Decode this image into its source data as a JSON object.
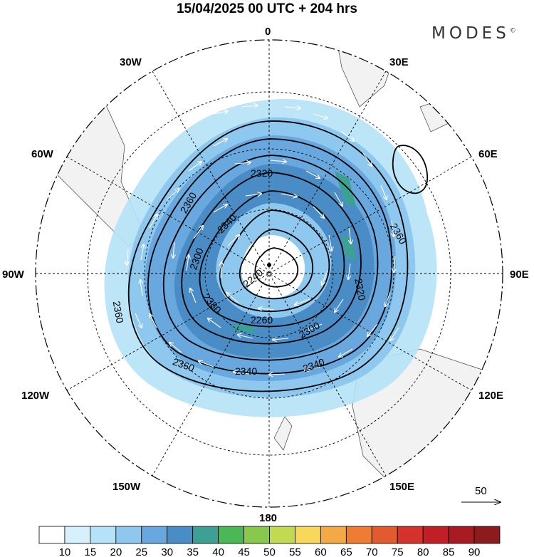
{
  "title": "15/04/2025  00 UTC  + 204 hrs",
  "brand": "MODES",
  "brand_mark": "©",
  "map": {
    "projection": "south-polar-stereographic",
    "longitude_labels": [
      {
        "text": "0",
        "lon": 0
      },
      {
        "text": "30E",
        "lon": 30
      },
      {
        "text": "60E",
        "lon": 60
      },
      {
        "text": "90E",
        "lon": 90
      },
      {
        "text": "120E",
        "lon": 120
      },
      {
        "text": "150E",
        "lon": 150
      },
      {
        "text": "180",
        "lon": 180
      },
      {
        "text": "150W",
        "lon": -150
      },
      {
        "text": "120W",
        "lon": -120
      },
      {
        "text": "90W",
        "lon": -90
      },
      {
        "text": "60W",
        "lon": -60
      },
      {
        "text": "30W",
        "lon": -30
      }
    ],
    "contour_labels": [
      "2360",
      "2320",
      "2340",
      "2300",
      "2360",
      "2360",
      "2360",
      "2320",
      "2380",
      "2260",
      "2300",
      "2340",
      "2340",
      "2360",
      "2240",
      "2280"
    ],
    "vector_reference": {
      "value": "50"
    }
  },
  "colorbar": {
    "ticks": [
      "10",
      "15",
      "20",
      "25",
      "30",
      "35",
      "40",
      "45",
      "50",
      "55",
      "60",
      "65",
      "70",
      "75",
      "80",
      "85",
      "90"
    ],
    "colors": [
      "#ffffff",
      "#d6f1fc",
      "#b6e2f7",
      "#8ec8ee",
      "#68a8de",
      "#4a8cc6",
      "#3ca192",
      "#4cb755",
      "#88c84c",
      "#c2da52",
      "#f6d85a",
      "#f3aa46",
      "#ee7c33",
      "#e35a2e",
      "#d3332a",
      "#c11f26",
      "#a81b22",
      "#8c1b1e"
    ]
  }
}
